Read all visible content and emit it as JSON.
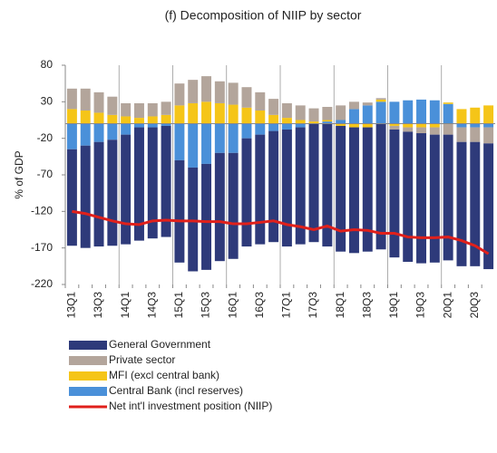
{
  "chart_data": {
    "type": "bar",
    "title": "(f) Decomposition of NIIP by sector",
    "y_label": "% of GDP",
    "categories": [
      "13Q1",
      null,
      "13Q3",
      null,
      "14Q1",
      null,
      "14Q3",
      null,
      "15Q1",
      null,
      "15Q3",
      null,
      "16Q1",
      null,
      "16Q3",
      null,
      "17Q1",
      null,
      "17Q3",
      null,
      "18Q1",
      null,
      "18Q3",
      null,
      "19Q1",
      null,
      "19Q3",
      null,
      "20Q1",
      null,
      "20Q3",
      null
    ],
    "ylim": [
      -220,
      80
    ],
    "yticks": [
      80,
      30,
      -20,
      -70,
      -120,
      -170,
      -220
    ],
    "series": [
      {
        "name": "General Government",
        "color": "#2e3a7a",
        "type": "bar",
        "values": [
          -132,
          -140,
          -143,
          -145,
          -150,
          -155,
          -152,
          -152,
          -140,
          -142,
          -145,
          -148,
          -145,
          -148,
          -150,
          -152,
          -160,
          -160,
          -162,
          -168,
          -172,
          -172,
          -170,
          -172,
          -175,
          -178,
          -178,
          -175,
          -172,
          -170,
          -170,
          -172
        ]
      },
      {
        "name": "Private sector",
        "color": "#b3a59b",
        "type": "bar",
        "values": [
          28,
          30,
          28,
          25,
          18,
          20,
          18,
          18,
          30,
          32,
          35,
          30,
          30,
          28,
          25,
          22,
          20,
          20,
          18,
          18,
          20,
          10,
          4,
          2,
          -5,
          -6,
          -8,
          -10,
          -15,
          -20,
          -20,
          -22
        ]
      },
      {
        "name": "MFI (excl central bank)",
        "color": "#f5c518",
        "type": "bar",
        "values": [
          20,
          18,
          15,
          12,
          10,
          8,
          10,
          12,
          25,
          28,
          30,
          28,
          26,
          22,
          18,
          12,
          8,
          5,
          3,
          2,
          -3,
          -5,
          -5,
          3,
          -3,
          -5,
          -5,
          -5,
          2,
          20,
          22,
          25
        ]
      },
      {
        "name": "Central Bank (incl reserves)",
        "color": "#4a90d9",
        "type": "bar",
        "values": [
          -35,
          -30,
          -25,
          -22,
          -15,
          -5,
          -5,
          -3,
          -50,
          -60,
          -55,
          -40,
          -40,
          -20,
          -15,
          -10,
          -8,
          -5,
          0,
          3,
          5,
          20,
          25,
          30,
          30,
          32,
          33,
          32,
          27,
          -5,
          -5,
          -5
        ]
      },
      {
        "name": "Net int'l investment position (NIIP)",
        "color": "#e0201b",
        "type": "line",
        "values": [
          -120,
          -123,
          -128,
          -133,
          -137,
          -138,
          -133,
          -132,
          -133,
          -133,
          -134,
          -134,
          -137,
          -137,
          -135,
          -133,
          -138,
          -141,
          -145,
          -140,
          -147,
          -145,
          -146,
          -150,
          -150,
          -155,
          -156,
          -156,
          -155,
          -160,
          -167,
          -178
        ]
      }
    ]
  }
}
